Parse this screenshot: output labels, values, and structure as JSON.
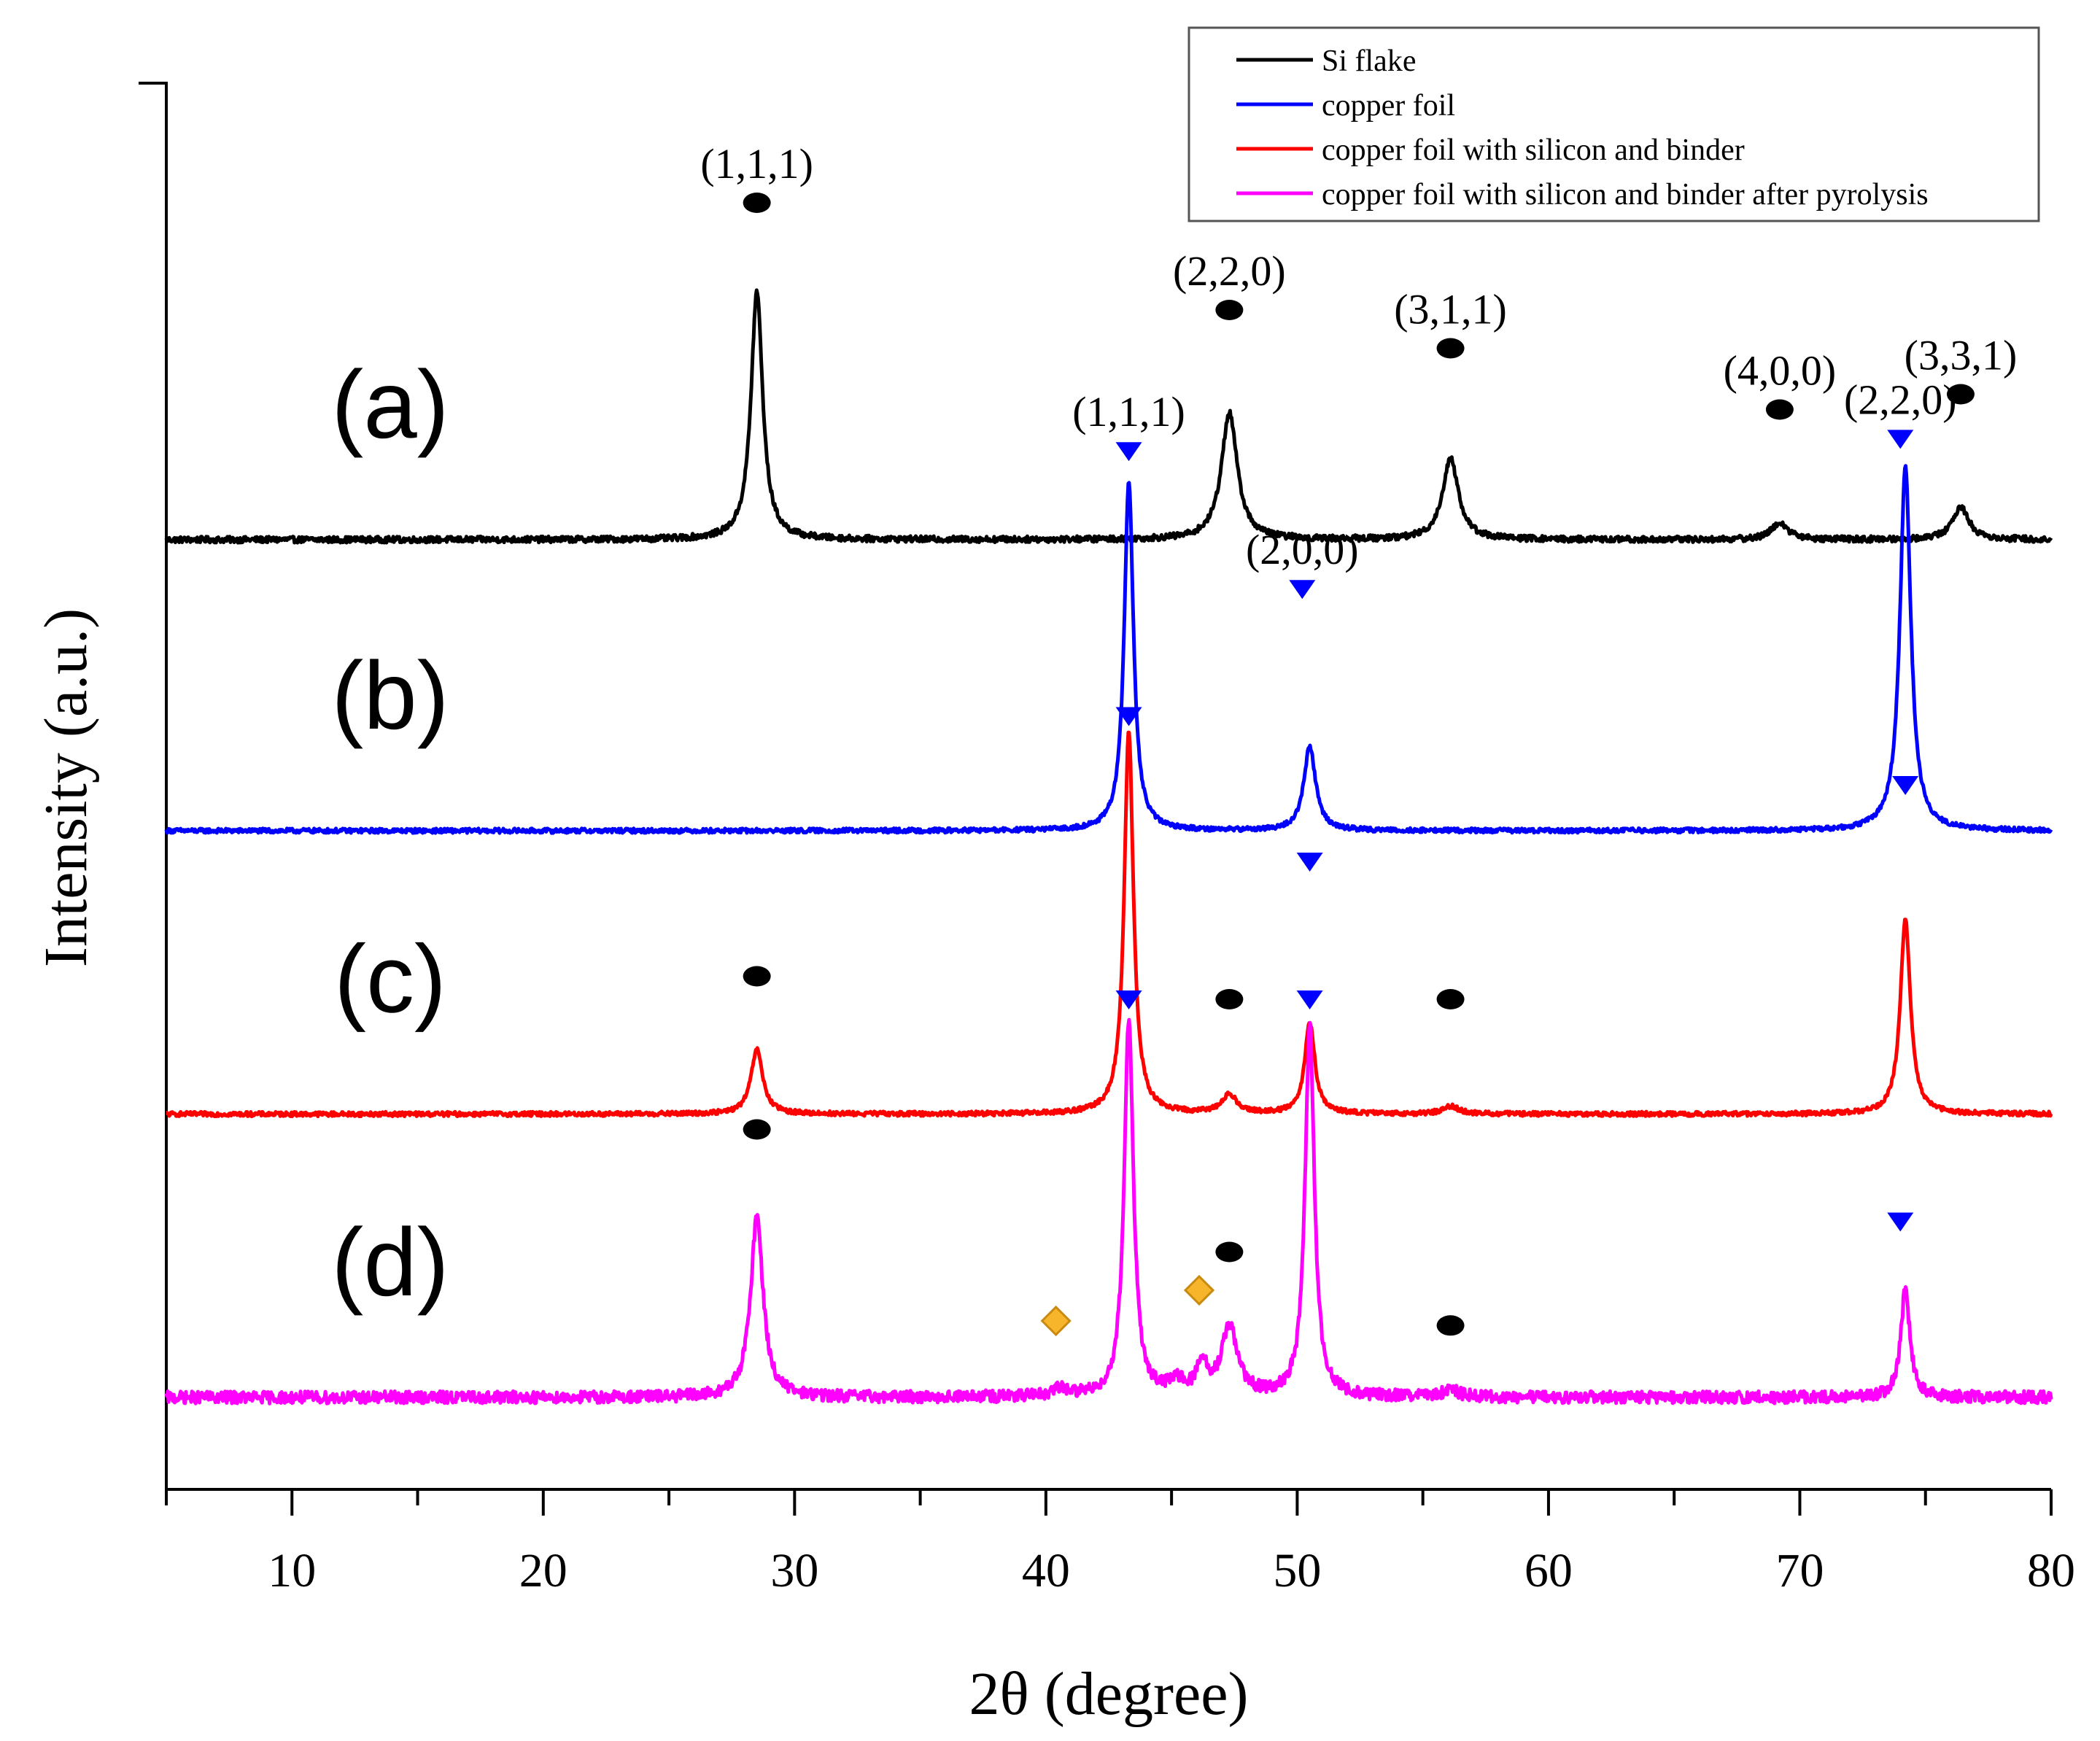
{
  "chart_data": {
    "type": "line",
    "title": "",
    "xlabel": "2θ (degree)",
    "ylabel": "Intensity (a.u.)",
    "xlim": [
      5,
      80
    ],
    "y_units": "arbitrary (stacked, offset per panel)",
    "x_ticks": [
      10,
      20,
      30,
      40,
      50,
      60,
      70,
      80
    ],
    "x_tick_labels": [
      "10",
      "20",
      "30",
      "40",
      "50",
      "60",
      "70",
      "80"
    ],
    "legend": {
      "placement": "top-right",
      "entries": [
        {
          "label": "Si flake",
          "color": "#000000"
        },
        {
          "label": "copper foil",
          "color": "#0000ff"
        },
        {
          "label": "copper foil with silicon and binder",
          "color": "#ff0000"
        },
        {
          "label": "copper foil with silicon and binder after pyrolysis",
          "color": "#ff00ff"
        }
      ]
    },
    "series": [
      {
        "name": "Si flake",
        "panel_label": "(a)",
        "color": "#000000",
        "baseline": 5.5,
        "noise": 0.02,
        "peaks": [
          {
            "x": 28.5,
            "height": 1.62,
            "width": 0.28
          },
          {
            "x": 47.3,
            "height": 0.83,
            "width": 0.38
          },
          {
            "x": 56.1,
            "height": 0.53,
            "width": 0.38
          },
          {
            "x": 69.2,
            "height": 0.11,
            "width": 0.4
          },
          {
            "x": 76.4,
            "height": 0.21,
            "width": 0.4
          }
        ],
        "markers": [
          {
            "x": 28.5,
            "y": 7.7,
            "symbol": "si",
            "label": "(1,1,1)"
          },
          {
            "x": 47.3,
            "y": 7.0,
            "symbol": "si",
            "label": "(2,2,0)"
          },
          {
            "x": 56.1,
            "y": 6.75,
            "symbol": "si",
            "label": "(3,1,1)"
          },
          {
            "x": 69.2,
            "y": 6.35,
            "symbol": "si",
            "label": "(4,0,0)"
          },
          {
            "x": 76.4,
            "y": 6.45,
            "symbol": "si",
            "label": "(3,3,1)"
          }
        ]
      },
      {
        "name": "copper foil",
        "panel_label": "(b)",
        "color": "#0000ff",
        "baseline": 3.6,
        "noise": 0.015,
        "peaks": [
          {
            "x": 43.3,
            "height": 2.28,
            "width": 0.22
          },
          {
            "x": 50.5,
            "height": 0.55,
            "width": 0.28
          },
          {
            "x": 74.2,
            "height": 2.38,
            "width": 0.26
          }
        ],
        "markers": [
          {
            "x": 43.3,
            "y": 6.08,
            "symbol": "cu",
            "label": "(1,1,1)"
          },
          {
            "x": 50.2,
            "y": 5.18,
            "symbol": "cu",
            "label": "(2,0,0)"
          },
          {
            "x": 74.0,
            "y": 6.16,
            "symbol": "cu",
            "label": "(2,2,0)"
          }
        ]
      },
      {
        "name": "copper foil with silicon and binder",
        "panel_label": "(c)",
        "color": "#ff0000",
        "baseline": 1.75,
        "noise": 0.015,
        "peaks": [
          {
            "x": 28.5,
            "height": 0.42,
            "width": 0.28
          },
          {
            "x": 43.3,
            "height": 2.5,
            "width": 0.22
          },
          {
            "x": 47.3,
            "height": 0.12,
            "width": 0.38
          },
          {
            "x": 50.5,
            "height": 0.6,
            "width": 0.24
          },
          {
            "x": 56.1,
            "height": 0.05,
            "width": 0.38
          },
          {
            "x": 74.2,
            "height": 1.28,
            "width": 0.24
          }
        ],
        "markers": [
          {
            "x": 28.5,
            "y": 2.65,
            "symbol": "si",
            "label": ""
          },
          {
            "x": 43.3,
            "y": 4.35,
            "symbol": "cu",
            "label": ""
          },
          {
            "x": 47.3,
            "y": 2.5,
            "symbol": "si",
            "label": ""
          },
          {
            "x": 50.5,
            "y": 3.4,
            "symbol": "cu",
            "label": ""
          },
          {
            "x": 56.1,
            "y": 2.5,
            "symbol": "si",
            "label": ""
          },
          {
            "x": 74.2,
            "y": 3.9,
            "symbol": "cu",
            "label": ""
          }
        ]
      },
      {
        "name": "copper foil with silicon and binder after pyrolysis",
        "panel_label": "(d)",
        "color": "#ff00ff",
        "baseline": -0.1,
        "noise": 0.04,
        "peaks": [
          {
            "x": 28.5,
            "height": 1.18,
            "width": 0.3
          },
          {
            "x": 40.6,
            "height": 0.05,
            "width": 0.35
          },
          {
            "x": 43.3,
            "height": 2.48,
            "width": 0.22
          },
          {
            "x": 45.2,
            "height": 0.08,
            "width": 0.4
          },
          {
            "x": 46.2,
            "height": 0.22,
            "width": 0.22
          },
          {
            "x": 47.3,
            "height": 0.45,
            "width": 0.38
          },
          {
            "x": 50.5,
            "height": 2.43,
            "width": 0.22
          },
          {
            "x": 56.1,
            "height": 0.05,
            "width": 0.38
          },
          {
            "x": 74.2,
            "height": 0.7,
            "width": 0.22
          }
        ],
        "markers": [
          {
            "x": 28.5,
            "y": 1.65,
            "symbol": "si",
            "label": ""
          },
          {
            "x": 40.4,
            "y": 0.4,
            "symbol": "diamond",
            "label": ""
          },
          {
            "x": 43.3,
            "y": 2.5,
            "symbol": "cu",
            "label": ""
          },
          {
            "x": 46.1,
            "y": 0.6,
            "symbol": "diamond",
            "label": ""
          },
          {
            "x": 47.3,
            "y": 0.85,
            "symbol": "si",
            "label": ""
          },
          {
            "x": 50.5,
            "y": 2.5,
            "symbol": "cu",
            "label": ""
          },
          {
            "x": 56.1,
            "y": 0.37,
            "symbol": "si",
            "label": ""
          },
          {
            "x": 74.0,
            "y": 1.05,
            "symbol": "cu",
            "label": ""
          }
        ]
      }
    ],
    "marker_colors": {
      "si": "#000000",
      "cu": "#0000ff",
      "diamond_fill": "#f6b52a",
      "diamond_stroke": "#c98a10"
    }
  }
}
